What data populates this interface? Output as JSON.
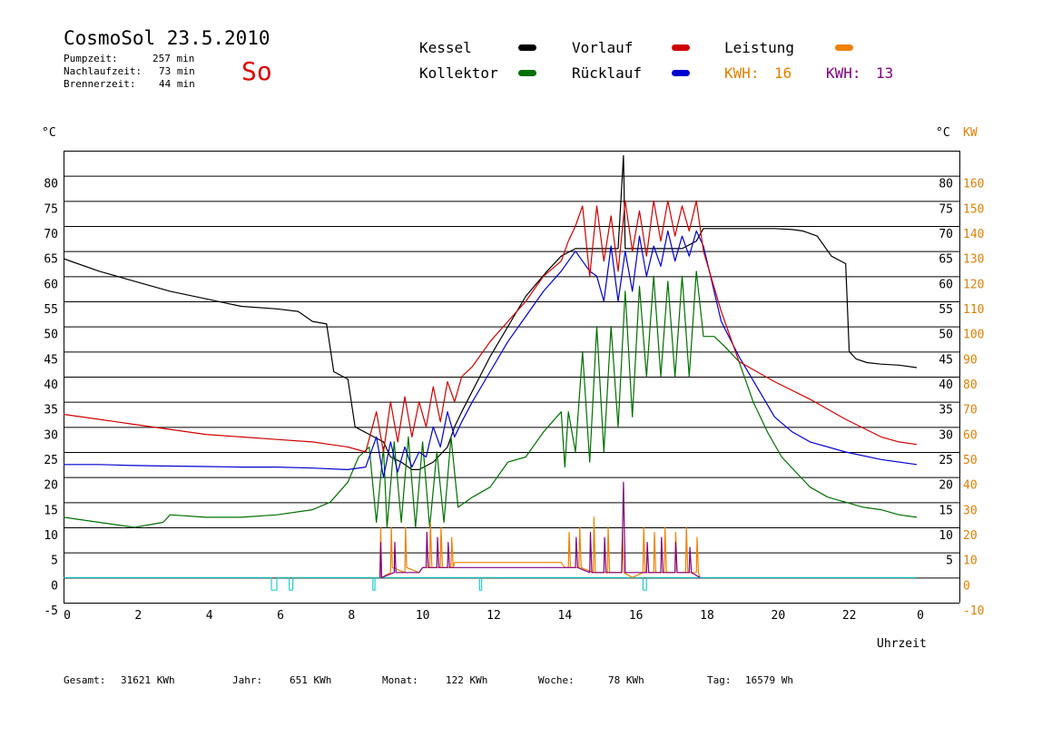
{
  "header": {
    "title": "CosmoSol 23.5.2010",
    "day": "So",
    "stats": [
      {
        "label": "Pumpzeit:",
        "value": "257 min"
      },
      {
        "label": "Nachlaufzeit:",
        "value": "73 min"
      },
      {
        "label": "Brennerzeit:",
        "value": "44 min"
      }
    ]
  },
  "legend": {
    "kessel": "Kessel",
    "kollektor": "Kollektor",
    "vorlauf": "Vorlauf",
    "ruecklauf": "Rücklauf",
    "leistung": "Leistung",
    "kwh1_label": "KWH:",
    "kwh1_value": "16",
    "kwh2_label": "KWH:",
    "kwh2_value": "13"
  },
  "colors": {
    "kessel": "#000000",
    "kollektor": "#007000",
    "vorlauf": "#d00000",
    "ruecklauf": "#0000d0",
    "leistung": "#f08000",
    "leistung2": "#800080",
    "pump": "#20d0d0",
    "kw_axis": "#e08000",
    "grid": "#000000"
  },
  "footer": {
    "gesamt_label": "Gesamt:",
    "gesamt_value": "31621 KWh",
    "jahr_label": "Jahr:",
    "jahr_value": "651 KWh",
    "monat_label": "Monat:",
    "monat_value": "122 KWh",
    "woche_label": "Woche:",
    "woche_value": "78 KWh",
    "tag_label": "Tag:",
    "tag_value": "16579 Wh"
  },
  "chart_data": {
    "type": "line",
    "xlabel": "Uhrzeit",
    "ylabel_left": "°C",
    "ylabel_right1": "°C",
    "ylabel_right2": "KW",
    "xlim": [
      0,
      24
    ],
    "ylim": [
      -5,
      85
    ],
    "y2lim": [
      -10,
      170
    ],
    "grid": true,
    "x_ticks": [
      "0",
      "2",
      "4",
      "6",
      "8",
      "10",
      "12",
      "14",
      "16",
      "18",
      "20",
      "22",
      "0"
    ],
    "y_ticks_left": [
      "80",
      "75",
      "70",
      "65",
      "60",
      "55",
      "50",
      "45",
      "40",
      "35",
      "30",
      "25",
      "20",
      "15",
      "10",
      "5",
      "0",
      "-5"
    ],
    "y_ticks_right": [
      "80",
      "75",
      "70",
      "65",
      "60",
      "55",
      "50",
      "45",
      "40",
      "35",
      "30",
      "25",
      "20",
      "15",
      "10",
      "5"
    ],
    "y2_ticks": [
      "160",
      "150",
      "140",
      "130",
      "120",
      "110",
      "100",
      "90",
      "80",
      "70",
      "60",
      "50",
      "40",
      "30",
      "20",
      "10",
      "0",
      "-10"
    ],
    "series": [
      {
        "name": "Kessel",
        "key": "kessel",
        "x": [
          0,
          1,
          2,
          3,
          4,
          5,
          6,
          6.6,
          7,
          7.4,
          7.6,
          8,
          8.2,
          8.6,
          9.0,
          9.2,
          9.5,
          9.8,
          10.0,
          10.4,
          10.8,
          11.0,
          11.2,
          12,
          13,
          13.6,
          14.0,
          14.4,
          14.8,
          15.2,
          15.6,
          15.75,
          15.8,
          15.9,
          16.2,
          16.8,
          17.4,
          17.8,
          18,
          19,
          20,
          20.5,
          20.8,
          21.0,
          21.2,
          21.6,
          22,
          22.1,
          22.3,
          22.6,
          23,
          23.5,
          24
        ],
        "y": [
          63.5,
          61,
          59,
          57,
          55.5,
          54,
          53.5,
          53,
          51,
          50.5,
          41,
          39.5,
          30,
          28.5,
          27,
          24,
          23,
          21.5,
          21.5,
          23,
          26,
          30,
          33,
          44,
          56,
          61,
          64,
          65.5,
          65.5,
          65.5,
          65.5,
          84,
          65.5,
          65.5,
          65.5,
          65.5,
          65.5,
          67,
          69.5,
          69.5,
          69.5,
          69.3,
          69,
          68.5,
          68,
          64,
          62.5,
          45,
          43.5,
          42.8,
          42.5,
          42.3,
          41.8
        ]
      },
      {
        "name": "Kollektor",
        "key": "kollektor",
        "x": [
          0,
          1,
          2,
          2.8,
          3,
          4,
          5,
          6,
          7,
          7.5,
          8,
          8.3,
          8.6,
          8.8,
          9.0,
          9.1,
          9.3,
          9.5,
          9.7,
          9.9,
          10.1,
          10.3,
          10.5,
          10.7,
          10.9,
          11.1,
          11.5,
          12,
          12.5,
          13,
          13.5,
          14,
          14.1,
          14.2,
          14.4,
          14.6,
          14.8,
          15.0,
          15.2,
          15.4,
          15.6,
          15.8,
          16.0,
          16.2,
          16.4,
          16.6,
          16.8,
          17.0,
          17.2,
          17.4,
          17.6,
          17.8,
          18.0,
          18.3,
          18.6,
          19.0,
          19.4,
          19.8,
          20.2,
          20.6,
          21,
          21.5,
          22,
          22.5,
          23,
          23.5,
          24
        ],
        "y": [
          12,
          11,
          10,
          11,
          12.5,
          12,
          12,
          12.5,
          13.5,
          15,
          19,
          24,
          26,
          11,
          26,
          10,
          27,
          11,
          28,
          10,
          27,
          10,
          25,
          11,
          28,
          14,
          16,
          18,
          23,
          24,
          29,
          33,
          22,
          33,
          25,
          45,
          23,
          50,
          25,
          50,
          30,
          57,
          32,
          58,
          40,
          60,
          40,
          59,
          40,
          60,
          40,
          61,
          48,
          48,
          46,
          43,
          35,
          29,
          24,
          21,
          18,
          16,
          15,
          14,
          13.5,
          12.5,
          12
        ]
      },
      {
        "name": "Vorlauf",
        "key": "vorlauf",
        "x": [
          0,
          1,
          2,
          3,
          4,
          5,
          6,
          7,
          7.5,
          8,
          8.5,
          8.8,
          9.0,
          9.2,
          9.4,
          9.6,
          9.8,
          10.0,
          10.2,
          10.4,
          10.6,
          10.8,
          11.0,
          11.2,
          11.5,
          12,
          12.5,
          13,
          13.5,
          14,
          14.2,
          14.4,
          14.6,
          14.8,
          15.0,
          15.2,
          15.4,
          15.6,
          15.8,
          16.0,
          16.2,
          16.4,
          16.6,
          16.8,
          17.0,
          17.2,
          17.4,
          17.6,
          17.8,
          18.0,
          18.5,
          19,
          20,
          21,
          22,
          23,
          23.5,
          24
        ],
        "y": [
          32.5,
          31.5,
          30.5,
          29.5,
          28.5,
          28,
          27.5,
          27,
          26.5,
          26,
          25,
          33,
          25,
          35,
          27,
          36,
          28,
          35,
          30,
          38,
          31,
          39,
          35,
          40,
          42,
          47,
          51,
          55,
          60,
          63,
          67,
          70,
          74,
          60,
          74,
          63,
          72,
          61,
          75,
          65,
          73,
          64,
          75,
          67,
          75,
          68,
          74,
          69,
          75,
          65,
          53,
          43,
          39,
          35.5,
          31.5,
          28,
          27,
          26.5
        ]
      },
      {
        "name": "Rücklauf",
        "key": "ruecklauf",
        "x": [
          0,
          1,
          2,
          3,
          4,
          5,
          6,
          7,
          8,
          8.5,
          8.8,
          9.0,
          9.2,
          9.4,
          9.6,
          9.8,
          10.0,
          10.2,
          10.4,
          10.6,
          10.8,
          11.0,
          11.2,
          11.5,
          12,
          12.5,
          13,
          13.5,
          14,
          14.2,
          14.4,
          14.6,
          14.8,
          15.0,
          15.2,
          15.4,
          15.6,
          15.8,
          16.0,
          16.2,
          16.4,
          16.6,
          16.8,
          17.0,
          17.2,
          17.4,
          17.6,
          17.8,
          18.0,
          18.5,
          19,
          19.5,
          20,
          20.5,
          21,
          22,
          23,
          24
        ],
        "y": [
          22.5,
          22.5,
          22.3,
          22.2,
          22.1,
          22,
          22,
          21.8,
          21.5,
          22,
          28,
          20,
          27,
          21,
          26,
          22,
          25,
          24,
          30,
          26,
          33,
          28,
          31,
          35,
          41,
          47,
          52,
          57,
          61,
          63,
          65,
          63,
          61,
          60,
          55,
          66,
          55,
          65,
          57,
          68,
          60,
          66,
          62,
          69,
          63,
          68,
          64,
          69,
          66,
          51,
          44,
          38,
          32,
          29,
          27,
          25,
          23.5,
          22.5
        ]
      },
      {
        "name": "Leistung",
        "key": "leistung",
        "x": [
          8.9,
          8.92,
          8.95,
          9.2,
          9.22,
          9.25,
          9.6,
          9.62,
          9.65,
          10.0,
          10.1,
          10.3,
          10.32,
          10.36,
          10.6,
          10.62,
          10.66,
          10.9,
          10.92,
          10.96,
          11.0,
          11.4,
          12,
          13,
          14,
          14.1,
          14.2,
          14.22,
          14.26,
          14.5,
          14.52,
          14.56,
          14.9,
          14.92,
          14.96,
          15.3,
          15.32,
          15.36,
          15.7,
          15.72,
          15.76,
          16.0,
          16.3,
          16.32,
          16.36,
          16.6,
          16.62,
          16.66,
          16.9,
          16.92,
          16.96,
          17.2,
          17.22,
          17.26,
          17.5,
          17.52,
          17.56,
          17.8,
          17.82,
          17.86,
          17.9
        ],
        "y": [
          0,
          10,
          0,
          1,
          10,
          2,
          1,
          10,
          2,
          1,
          2,
          2,
          11,
          2,
          2,
          10,
          2,
          2,
          8,
          2,
          3,
          3,
          3,
          3,
          3,
          2,
          2,
          9,
          2,
          2,
          10,
          2,
          1,
          12,
          1,
          1,
          10,
          1,
          1,
          9,
          1,
          0,
          1,
          10,
          1,
          1,
          9,
          1,
          1,
          10,
          1,
          1,
          9,
          1,
          1,
          10,
          1,
          1,
          8,
          1,
          0
        ]
      },
      {
        "name": "Leistung2",
        "key": "leistung2",
        "x": [
          8.9,
          8.92,
          8.95,
          9.3,
          9.32,
          9.35,
          10.0,
          10.1,
          10.2,
          10.22,
          10.26,
          10.5,
          10.52,
          10.56,
          10.8,
          10.82,
          10.86,
          11.2,
          12,
          13,
          14,
          14.2,
          14.4,
          14.42,
          14.46,
          14.8,
          14.82,
          14.86,
          15.2,
          15.22,
          15.26,
          15.5,
          15.7,
          15.75,
          15.8,
          15.85,
          16.0,
          16.4,
          16.42,
          16.46,
          16.8,
          16.82,
          16.86,
          17.2,
          17.22,
          17.26,
          17.6,
          17.62,
          17.66,
          17.9
        ],
        "y": [
          0,
          7,
          0,
          1,
          7,
          1,
          1,
          2,
          2,
          9,
          2,
          2,
          8,
          2,
          2,
          7,
          2,
          2,
          2,
          2,
          2,
          2,
          2,
          8,
          2,
          1,
          9,
          1,
          1,
          8,
          1,
          1,
          1,
          19,
          1,
          1,
          1,
          1,
          7,
          1,
          1,
          8,
          1,
          1,
          7,
          1,
          1,
          6,
          1,
          0
        ]
      },
      {
        "name": "Pumpe",
        "key": "pump",
        "x": [
          0,
          5.85,
          5.85,
          6.0,
          6.0,
          6.35,
          6.35,
          6.45,
          6.45,
          8.7,
          8.7,
          8.76,
          8.76,
          11.7,
          11.7,
          11.76,
          11.76,
          16.3,
          16.3,
          16.4,
          16.4,
          24
        ],
        "y": [
          0,
          0,
          -2.5,
          -2.5,
          0,
          0,
          -2.5,
          -2.5,
          0,
          0,
          -2.5,
          -2.5,
          0,
          0,
          -2.5,
          -2.5,
          0,
          0,
          -2.5,
          -2.5,
          0,
          0
        ]
      }
    ]
  }
}
